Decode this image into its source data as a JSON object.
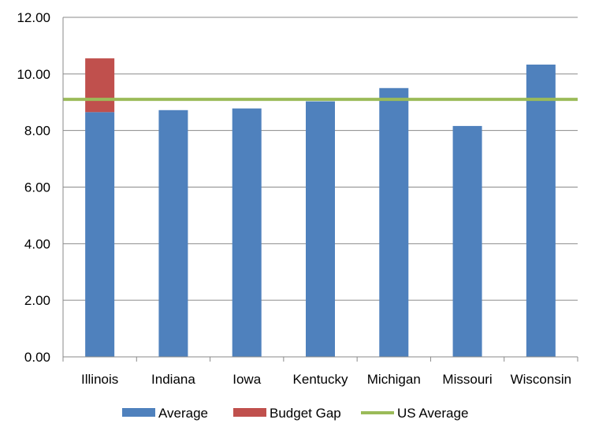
{
  "chart_data": {
    "type": "bar",
    "categories": [
      "Illinois",
      "Indiana",
      "Iowa",
      "Kentucky",
      "Michigan",
      "Missouri",
      "Wisconsin"
    ],
    "series": [
      {
        "name": "Average",
        "color": "#4f81bd",
        "values": [
          8.65,
          8.72,
          8.78,
          9.03,
          9.5,
          8.16,
          10.33
        ]
      },
      {
        "name": "Budget Gap",
        "color": "#c0504d",
        "values": [
          1.9,
          0,
          0,
          0,
          0,
          0,
          0
        ],
        "stacked_on": "Average"
      }
    ],
    "reference_line": {
      "name": "US Average",
      "color": "#9bbb59",
      "value": 9.1
    },
    "ylim": [
      0,
      12
    ],
    "yticks": [
      "0.00",
      "2.00",
      "4.00",
      "6.00",
      "8.00",
      "10.00",
      "12.00"
    ],
    "ytick_values": [
      0,
      2,
      4,
      6,
      8,
      10,
      12
    ],
    "grid": true,
    "legend": {
      "position": "bottom",
      "items": [
        "Average",
        "Budget Gap",
        "US Average"
      ]
    },
    "title": "",
    "xlabel": "",
    "ylabel": ""
  }
}
